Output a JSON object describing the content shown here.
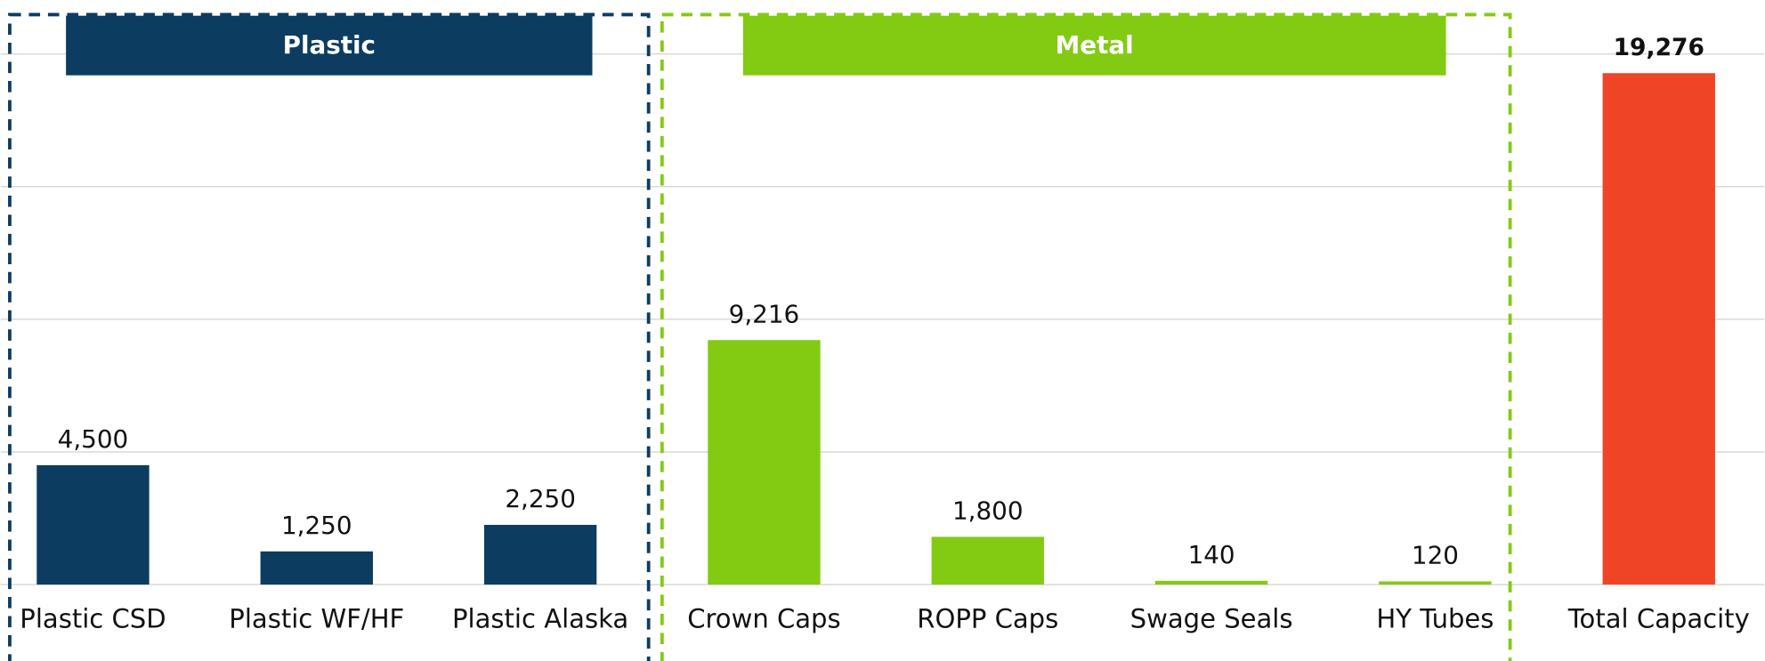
{
  "chart_data": {
    "type": "bar",
    "groups": [
      "Plastic",
      "Metal"
    ],
    "categories": [
      "Plastic CSD",
      "Plastic WF/HF",
      "Plastic Alaska",
      "Crown Caps",
      "ROPP Caps",
      "Swage Seals",
      "HY Tubes",
      "Total Capacity"
    ],
    "values": [
      4500,
      1250,
      2250,
      9216,
      1800,
      140,
      120,
      19276
    ],
    "value_labels": [
      "4,500",
      "1,250",
      "2,250",
      "9,216",
      "1,800",
      "140",
      "120",
      "19,276"
    ],
    "colors": [
      "#0d3c61",
      "#0d3c61",
      "#0d3c61",
      "#82cb12",
      "#82cb12",
      "#82cb12",
      "#82cb12",
      "#ef4426"
    ],
    "ylim": [
      0,
      20000
    ],
    "yticks": [
      0,
      5000,
      10000,
      15000,
      20000
    ],
    "grid": true
  }
}
